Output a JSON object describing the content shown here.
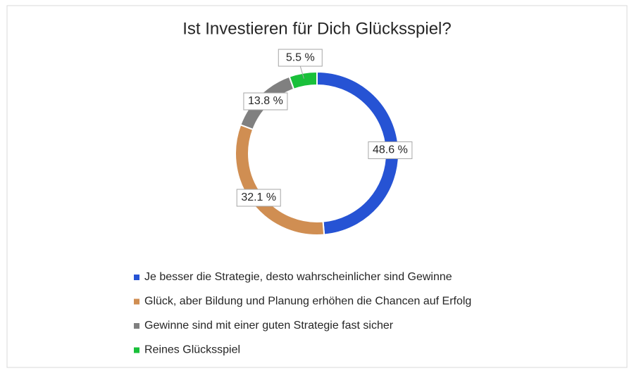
{
  "chart_data": {
    "type": "donut",
    "title": "Ist Investieren für Dich Glücksspiel?",
    "categories": [
      "Je besser die Strategie, desto wahrscheinlicher sind Gewinne",
      "Glück, aber Bildung und Planung erhöhen die Chancen auf Erfolg",
      "Gewinne sind mit einer guten Strategie fast sicher",
      "Reines Glücksspiel"
    ],
    "values": [
      48.6,
      32.1,
      13.8,
      5.5
    ],
    "value_labels": [
      "48.6 %",
      "32.1 %",
      "13.8 %",
      "5.5 %"
    ],
    "colors": [
      "#2653d4",
      "#d08e52",
      "#808080",
      "#19c03a"
    ]
  }
}
